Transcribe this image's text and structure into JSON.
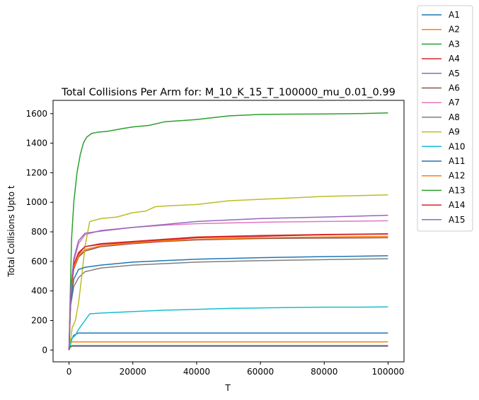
{
  "chart_data": {
    "type": "line",
    "title": "Total Collisions Per Arm for: M_10_K_15_T_100000_mu_0.01_0.99",
    "xlabel": "T",
    "ylabel": "Total Collisions Upto t",
    "xlim": [
      -5000,
      105000
    ],
    "ylim": [
      -80,
      1690
    ],
    "xticks": [
      0,
      20000,
      40000,
      60000,
      80000,
      100000
    ],
    "xtick_labels": [
      "0",
      "20000",
      "40000",
      "60000",
      "80000",
      "100000"
    ],
    "yticks": [
      0,
      200,
      400,
      600,
      800,
      1000,
      1200,
      1400,
      1600
    ],
    "ytick_labels": [
      "0",
      "200",
      "400",
      "600",
      "800",
      "1000",
      "1200",
      "1400",
      "1600"
    ],
    "grid": false,
    "legend_position": "outside-upper-right",
    "series": [
      {
        "name": "A1",
        "color": "#1f77b4",
        "x": [
          0,
          500,
          1500,
          3000,
          100000
        ],
        "y": [
          0,
          60,
          100,
          115,
          115
        ]
      },
      {
        "name": "A2",
        "color": "#ff7f0e",
        "x": [
          0,
          300,
          800,
          100000
        ],
        "y": [
          0,
          40,
          55,
          55
        ]
      },
      {
        "name": "A3",
        "color": "#2ca02c",
        "x": [
          0,
          300,
          800,
          1500,
          2500,
          3500,
          4500,
          5500,
          7000,
          9000,
          12000,
          17000,
          20000,
          25000,
          30000,
          40000,
          50000,
          60000,
          70000,
          80000,
          90000,
          100000
        ],
        "y": [
          0,
          300,
          750,
          1000,
          1200,
          1320,
          1400,
          1440,
          1465,
          1475,
          1480,
          1500,
          1510,
          1520,
          1545,
          1560,
          1585,
          1595,
          1597,
          1598,
          1600,
          1605
        ]
      },
      {
        "name": "A4",
        "color": "#d62728",
        "x": [
          0,
          500,
          1500,
          3000,
          5000,
          10000,
          20000,
          30000,
          40000,
          60000,
          80000,
          100000
        ],
        "y": [
          0,
          380,
          570,
          650,
          700,
          715,
          730,
          745,
          760,
          770,
          780,
          785
        ]
      },
      {
        "name": "A5",
        "color": "#9467bd",
        "x": [
          0,
          400,
          1000,
          100000
        ],
        "y": [
          0,
          20,
          25,
          25
        ]
      },
      {
        "name": "A6",
        "color": "#8c564b",
        "x": [
          0,
          500,
          1500,
          3000,
          5000,
          10000,
          20000,
          30000,
          40000,
          60000,
          80000,
          100000
        ],
        "y": [
          0,
          350,
          550,
          630,
          670,
          700,
          720,
          735,
          745,
          755,
          758,
          760
        ]
      },
      {
        "name": "A7",
        "color": "#e377c2",
        "x": [
          0,
          500,
          1500,
          3000,
          5000,
          10000,
          20000,
          30000,
          40000,
          60000,
          80000,
          100000
        ],
        "y": [
          0,
          380,
          600,
          720,
          780,
          810,
          830,
          845,
          855,
          865,
          870,
          875
        ]
      },
      {
        "name": "A8",
        "color": "#7f7f7f",
        "x": [
          0,
          500,
          1500,
          3000,
          5000,
          10000,
          20000,
          30000,
          40000,
          60000,
          80000,
          100000
        ],
        "y": [
          0,
          300,
          430,
          490,
          530,
          555,
          575,
          585,
          595,
          605,
          612,
          618
        ]
      },
      {
        "name": "A9",
        "color": "#bcbd22",
        "x": [
          0,
          1000,
          2000,
          3000,
          4000,
          5000,
          6500,
          10000,
          15000,
          20000,
          24000,
          27000,
          30000,
          40000,
          50000,
          60000,
          70000,
          80000,
          90000,
          100000
        ],
        "y": [
          0,
          150,
          200,
          320,
          500,
          700,
          870,
          890,
          900,
          930,
          940,
          970,
          975,
          985,
          1010,
          1020,
          1030,
          1040,
          1045,
          1050
        ]
      },
      {
        "name": "A10",
        "color": "#17becf",
        "x": [
          0,
          1000,
          2000,
          3000,
          4000,
          5000,
          6500,
          10000,
          20000,
          30000,
          40000,
          50000,
          60000,
          70000,
          80000,
          90000,
          100000
        ],
        "y": [
          0,
          80,
          100,
          140,
          170,
          200,
          245,
          250,
          260,
          270,
          275,
          282,
          285,
          288,
          290,
          290,
          292
        ]
      },
      {
        "name": "A11",
        "color": "#1f77b4",
        "x": [
          0,
          500,
          1500,
          3000,
          5000,
          10000,
          20000,
          30000,
          40000,
          60000,
          80000,
          100000
        ],
        "y": [
          0,
          320,
          480,
          545,
          560,
          575,
          595,
          605,
          615,
          625,
          632,
          638
        ]
      },
      {
        "name": "A12",
        "color": "#ff7f0e",
        "x": [
          0,
          500,
          1500,
          3000,
          5000,
          10000,
          20000,
          30000,
          40000,
          60000,
          80000,
          100000
        ],
        "y": [
          0,
          370,
          560,
          640,
          680,
          705,
          725,
          740,
          750,
          760,
          765,
          770
        ]
      },
      {
        "name": "A13",
        "color": "#2ca02c",
        "x": [
          0,
          400,
          1000,
          100000
        ],
        "y": [
          0,
          25,
          30,
          30
        ]
      },
      {
        "name": "A14",
        "color": "#d62728",
        "x": [
          0,
          500,
          1500,
          3000,
          5000,
          10000,
          20000,
          30000,
          40000,
          60000,
          80000,
          100000
        ],
        "y": [
          0,
          400,
          580,
          660,
          700,
          720,
          735,
          750,
          765,
          775,
          782,
          787
        ]
      },
      {
        "name": "A15",
        "color": "#9467bd",
        "x": [
          0,
          500,
          1500,
          3000,
          5000,
          10000,
          20000,
          30000,
          40000,
          60000,
          80000,
          100000
        ],
        "y": [
          0,
          400,
          620,
          740,
          790,
          805,
          830,
          850,
          870,
          890,
          900,
          912
        ]
      }
    ]
  }
}
